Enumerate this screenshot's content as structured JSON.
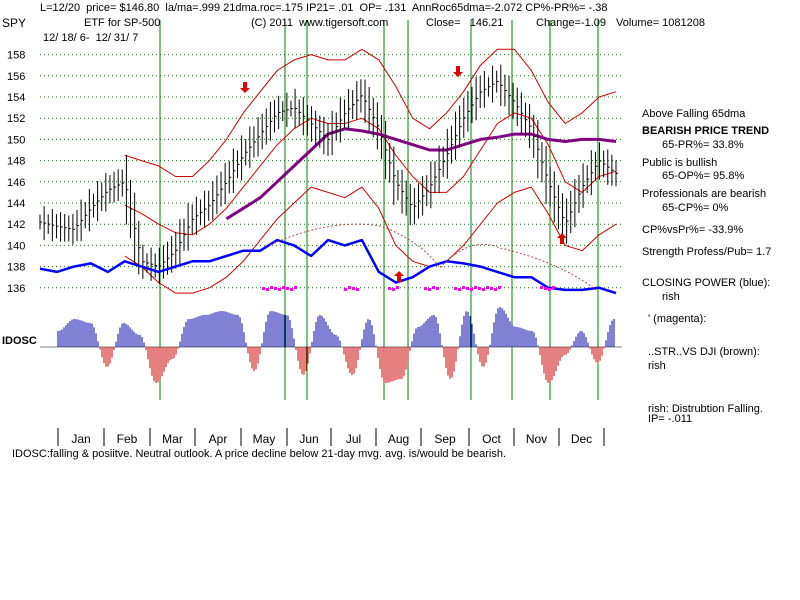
{
  "header": {
    "line1": "L=12/20  price= $146.80  la/ma=.999 21dma.roc=.175 IP21= .01  OP= .131  AnnRoc65dma=-2.072 CP%-PR%= -.38",
    "ticker": "SPY",
    "description": "ETF for SP-500",
    "copyright": "(C) 2011  www.tigersoft.com",
    "close": "Close=   146.21",
    "change": "Change=-1.09",
    "volume": "Volume= 1081208",
    "date_range": "12/ 18/ 6-  12/ 31/ 7"
  },
  "indicator_label": "IDOSC",
  "bottom_note": "IDOSC:falling & posiitve. Neutral outlook. A price decline below 21-day mvg. avg. is/would be bearish.",
  "side_panel": {
    "l1": "Above Falling 65dma",
    "l2": "BEARISH PRICE TREND",
    "l3": "65-PR%= 33.8%",
    "l4": "Public is bullish",
    "l5": "65-OP%= 95.8%",
    "l6": "Professionals are bearish",
    "l7": "65-CP%= 0%",
    "l8": "CP%vsPr%= -33.9%",
    "l9": "Strength Profess/Pub= 1.7",
    "l10": "CLOSING POWER (blue):",
    "l11": "rish",
    "l12": "' (magenta):",
    "l13": "..STR..VS DJI (brown):",
    "l14": "rish",
    "l15": "rish: Distrubtion Falling.",
    "l16": "IP= -.011"
  },
  "colors": {
    "price_bars": "#000000",
    "ma21": "#dd0000",
    "bands": "#cc0000",
    "ma65": "#800080",
    "closing_power": "#0000ff",
    "magenta": "#ff00ff",
    "brown": "#b05050",
    "vlines": "#008000",
    "osc_pos": "#0000aa",
    "osc_neg": "#cc0000",
    "grid": "#008000"
  },
  "chart_data": {
    "type": "line",
    "title": "ETF for SP-500",
    "ylim": [
      135,
      159
    ],
    "y_ticks": [
      136,
      138,
      140,
      142,
      144,
      146,
      148,
      150,
      152,
      154,
      156,
      158
    ],
    "months": [
      "Jan",
      "Feb",
      "Mar",
      "Apr",
      "May",
      "Jun",
      "Jul",
      "Aug",
      "Sep",
      "Oct",
      "Nov",
      "Dec"
    ],
    "series": [
      {
        "key": "price",
        "values": [
          142.2,
          141.8,
          141.5,
          143.5,
          145.2,
          146.0,
          138.5,
          138.0,
          139.5,
          142.5,
          143.8,
          146.0,
          148.5,
          150.5,
          152.5,
          153.0,
          151.5,
          150.0,
          152.5,
          154.2,
          151.0,
          146.0,
          143.5,
          145.5,
          148.5,
          152.0,
          154.5,
          155.5,
          153.5,
          151.0,
          146.0,
          142.0,
          145.5,
          148.0,
          146.8
        ]
      },
      {
        "key": "ma21",
        "values": [
          null,
          null,
          null,
          null,
          null,
          143.8,
          143.0,
          142.0,
          141.2,
          141.0,
          142.0,
          143.5,
          145.5,
          147.5,
          149.5,
          151.0,
          152.0,
          151.5,
          151.5,
          152.0,
          151.0,
          148.5,
          146.5,
          145.0,
          145.0,
          146.5,
          149.0,
          151.5,
          152.5,
          152.0,
          149.5,
          146.0,
          145.0,
          146.5,
          147.0
        ]
      },
      {
        "key": "upper_band",
        "values": [
          null,
          null,
          null,
          null,
          null,
          148.5,
          148.0,
          147.5,
          146.5,
          146.5,
          148.0,
          150.0,
          152.5,
          154.5,
          156.5,
          157.5,
          158.0,
          157.5,
          157.5,
          158.5,
          157.5,
          155.0,
          152.0,
          151.0,
          152.5,
          154.5,
          157.0,
          158.5,
          158.5,
          156.5,
          153.5,
          151.5,
          152.5,
          154.0,
          154.5
        ]
      },
      {
        "key": "lower_band",
        "values": [
          null,
          null,
          null,
          null,
          null,
          139.0,
          138.0,
          136.5,
          135.5,
          135.5,
          136.0,
          137.0,
          138.5,
          140.5,
          142.5,
          144.0,
          145.5,
          145.0,
          144.5,
          145.5,
          143.5,
          140.0,
          138.5,
          138.0,
          138.5,
          140.0,
          142.0,
          144.0,
          145.0,
          145.5,
          143.0,
          140.0,
          139.5,
          141.0,
          142.0
        ]
      },
      {
        "key": "ma65",
        "values": [
          null,
          null,
          null,
          null,
          null,
          null,
          null,
          null,
          null,
          null,
          null,
          142.5,
          143.5,
          144.5,
          146.0,
          147.5,
          149.0,
          150.5,
          151.0,
          150.8,
          150.5,
          150.0,
          149.5,
          149.0,
          149.0,
          149.5,
          150.0,
          150.2,
          150.5,
          150.5,
          150.0,
          149.8,
          150.0,
          150.0,
          149.8
        ]
      },
      {
        "key": "closing_power",
        "values": [
          137.8,
          137.5,
          138.0,
          138.3,
          137.5,
          138.5,
          138.0,
          137.5,
          138.0,
          138.5,
          138.5,
          139.0,
          139.5,
          139.5,
          140.5,
          140.0,
          139.0,
          140.5,
          140.0,
          140.5,
          137.5,
          136.5,
          137.0,
          138.0,
          138.5,
          138.3,
          138.0,
          137.5,
          137.0,
          137.0,
          136.0,
          135.8,
          135.8,
          136.0,
          135.5
        ]
      },
      {
        "key": "idosc",
        "values": [
          0.4,
          0.7,
          0.6,
          -0.5,
          0.6,
          0.3,
          -0.9,
          -0.3,
          0.7,
          0.8,
          0.9,
          0.8,
          -0.6,
          0.9,
          0.8,
          -0.7,
          0.8,
          0.3,
          -0.7,
          0.7,
          -0.9,
          -0.8,
          0.5,
          0.8,
          -0.8,
          0.9,
          -0.5,
          1.0,
          0.5,
          0.4,
          -0.9,
          -0.2,
          0.4,
          -0.4,
          0.7
        ]
      }
    ]
  }
}
